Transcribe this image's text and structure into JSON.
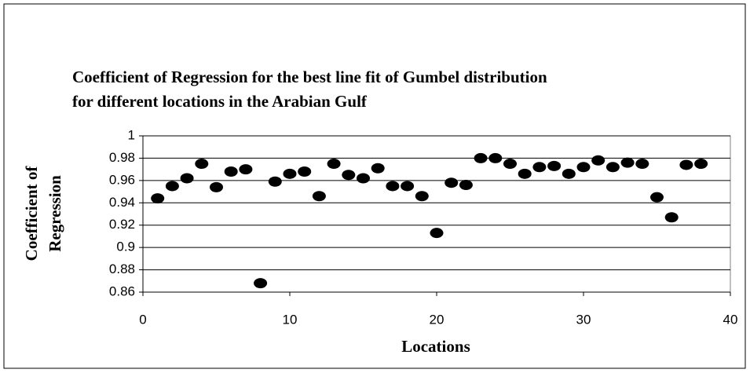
{
  "chart_data": {
    "type": "scatter",
    "title": [
      "Coefficient of Regression for the best line fit of Gumbel distribution",
      "for different locations in the Arabian Gulf"
    ],
    "x_label": "Locations",
    "y_label": [
      "Coefficient of",
      "Regression"
    ],
    "color": "#000000",
    "grid": true,
    "x": [
      1,
      2,
      3,
      4,
      5,
      6,
      7,
      8,
      9,
      10,
      11,
      12,
      13,
      14,
      15,
      16,
      17,
      18,
      19,
      20,
      21,
      22,
      23,
      24,
      25,
      26,
      27,
      28,
      29,
      30,
      31,
      32,
      33,
      34,
      35,
      36,
      37,
      38
    ],
    "values": [
      0.944,
      0.955,
      0.962,
      0.975,
      0.954,
      0.968,
      0.97,
      0.868,
      0.959,
      0.966,
      0.968,
      0.946,
      0.975,
      0.965,
      0.962,
      0.971,
      0.955,
      0.955,
      0.946,
      0.913,
      0.958,
      0.956,
      0.98,
      0.98,
      0.975,
      0.966,
      0.972,
      0.973,
      0.966,
      0.972,
      0.978,
      0.972,
      0.976,
      0.975,
      0.945,
      0.927,
      0.974,
      0.975
    ],
    "xlim": [
      0,
      40
    ],
    "xticks": [
      0,
      10,
      20,
      30,
      40
    ],
    "ylim": [
      0.86,
      1
    ],
    "yticks": [
      0.86,
      0.88,
      0.9,
      0.92,
      0.94,
      0.96,
      0.98,
      1
    ]
  }
}
